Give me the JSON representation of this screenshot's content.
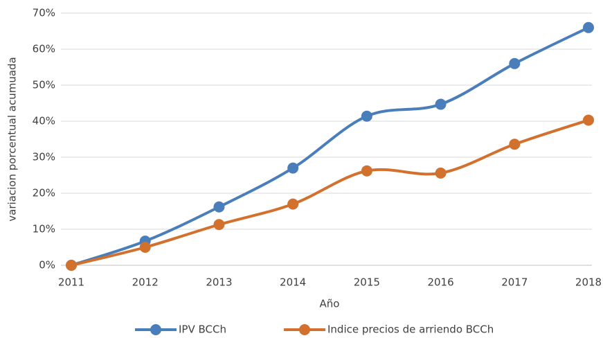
{
  "chart_data": {
    "type": "line",
    "x_label": "Año",
    "y_label": "variacion porcentual acumuada",
    "categories": [
      "2011",
      "2012",
      "2013",
      "2014",
      "2015",
      "2016",
      "2017",
      "2018"
    ],
    "series": [
      {
        "name": "IPV BCCh",
        "color": "#4a7ebb",
        "values": [
          0,
          6.7,
          16.2,
          27,
          41.4,
          44.7,
          56,
          66
        ]
      },
      {
        "name": "Indice precios de arriendo BCCh",
        "color": "#d2712d",
        "values": [
          0,
          5,
          11.3,
          17,
          26.2,
          25.6,
          33.6,
          40.3
        ]
      }
    ],
    "ylim": [
      0,
      70
    ],
    "yticks": [
      {
        "value": 0,
        "label": "0%"
      },
      {
        "value": 10,
        "label": "10%"
      },
      {
        "value": 20,
        "label": "20%"
      },
      {
        "value": 30,
        "label": "30%"
      },
      {
        "value": 40,
        "label": "40%"
      },
      {
        "value": 50,
        "label": "50%"
      },
      {
        "value": 60,
        "label": "60%"
      },
      {
        "value": 70,
        "label": "70%"
      }
    ],
    "grid": true,
    "smooth": true,
    "legend": "bottom"
  }
}
